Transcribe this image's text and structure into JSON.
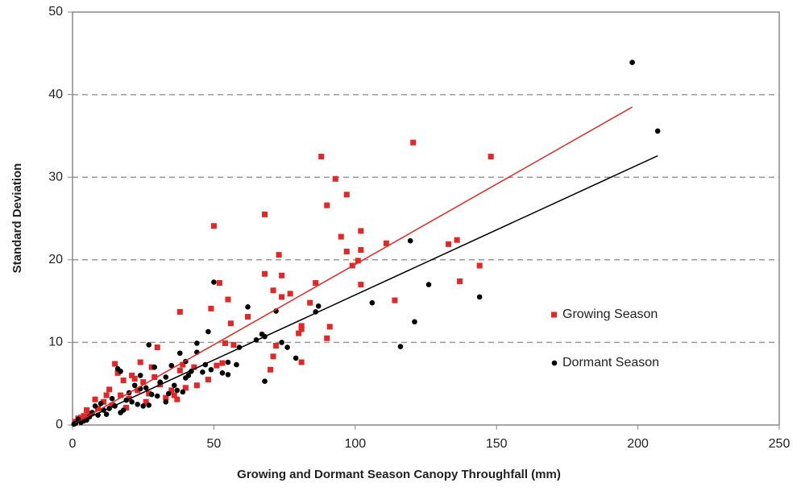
{
  "chart_data": {
    "type": "scatter",
    "xlabel": "Growing and Dormant Season Canopy Throughfall (mm)",
    "ylabel": "Standard Deviation",
    "xlim": [
      0,
      250
    ],
    "xticks": [
      0,
      50,
      100,
      150,
      200,
      250
    ],
    "ylim": [
      0,
      50
    ],
    "yticks": [
      0,
      10,
      20,
      30,
      40,
      50
    ],
    "grid": true,
    "legend": "right",
    "series": [
      {
        "name": "Growing Season",
        "color": "#e32626",
        "marker": "square",
        "x": [
          88,
          120.5,
          148,
          93,
          97,
          90,
          68,
          50,
          102,
          95,
          111,
          133,
          136,
          102,
          97,
          73,
          99,
          144,
          101,
          68,
          74,
          86,
          52,
          102,
          137,
          71,
          77,
          74,
          55,
          114,
          84,
          49,
          62,
          38,
          91,
          80,
          81,
          81,
          56,
          90,
          72,
          54,
          57,
          81,
          71,
          70,
          30,
          15,
          24,
          28,
          43,
          38,
          21,
          16,
          22,
          18,
          25,
          31,
          35,
          40,
          44,
          13,
          17,
          20,
          27,
          33,
          8,
          11,
          14,
          19,
          9,
          5,
          4,
          2,
          1,
          26,
          23,
          36,
          39,
          29,
          37,
          48,
          53,
          51,
          12,
          6,
          3
        ],
        "y": [
          32.5,
          34.2,
          32.5,
          29.8,
          27.9,
          26.6,
          25.5,
          24.1,
          23.5,
          22.8,
          22,
          21.9,
          22.4,
          21.2,
          21,
          20.6,
          19.3,
          19.3,
          19.9,
          18.3,
          18.1,
          17.2,
          17.2,
          17,
          17.4,
          16.3,
          15.9,
          15.5,
          15.2,
          15.1,
          14.8,
          14.1,
          13.1,
          13.7,
          11.9,
          11.1,
          11.6,
          12,
          12.3,
          10.5,
          9.6,
          9.9,
          9.7,
          7.6,
          8.3,
          6.7,
          9.4,
          7.4,
          7.6,
          7,
          7,
          6.6,
          6,
          6.3,
          5.6,
          5.4,
          5.2,
          4.9,
          4.2,
          4.5,
          4.8,
          4.3,
          3.6,
          3.2,
          3.8,
          3.3,
          3.1,
          2.8,
          2.4,
          2.1,
          2,
          1.8,
          1.1,
          0.8,
          0.4,
          2.8,
          4.2,
          3.6,
          7.3,
          5.8,
          3.1,
          5.5,
          7.5,
          7.2,
          3.6,
          1.4,
          0.9
        ],
        "trend_x": [
          0,
          198
        ],
        "trend_y": [
          0,
          38.5
        ]
      },
      {
        "name": "Dormant Season",
        "color": "#000000",
        "marker": "circle",
        "x": [
          198,
          207,
          119.5,
          126,
          144,
          106,
          121,
          116,
          87,
          86,
          62,
          72,
          67,
          68,
          74,
          59,
          65,
          76,
          50,
          48,
          79,
          58,
          68,
          55,
          44,
          44,
          38,
          27,
          40,
          42,
          46,
          47,
          49,
          53,
          55,
          35,
          31,
          33,
          16,
          17,
          29,
          26,
          24,
          20,
          22,
          36,
          39,
          40,
          41,
          34,
          30,
          28,
          19,
          21,
          23,
          25,
          27,
          33,
          15,
          13,
          11,
          10,
          8,
          7,
          9,
          12,
          17,
          18,
          6,
          5,
          4,
          3,
          2,
          1,
          0.5,
          14,
          37,
          24
        ],
        "y": [
          43.9,
          35.6,
          22.3,
          17,
          15.5,
          14.8,
          12.5,
          9.5,
          14.4,
          13.7,
          14.3,
          13.8,
          11,
          10.7,
          10,
          9.4,
          10.3,
          9.4,
          17.3,
          11.3,
          8.1,
          7.3,
          5.3,
          7.6,
          8.8,
          9.9,
          8.7,
          9.7,
          7.7,
          6.5,
          6.4,
          7.3,
          6.7,
          6.3,
          6.1,
          7.2,
          5.2,
          5.8,
          6.8,
          6.5,
          7,
          4.5,
          4.4,
          3.9,
          4.8,
          4.8,
          4,
          5.7,
          6,
          3.8,
          3.5,
          3.7,
          3,
          2.8,
          2.5,
          2.3,
          2.4,
          2.8,
          2.3,
          2,
          1.8,
          2.6,
          2.3,
          1.5,
          1.2,
          1.3,
          1.5,
          1.8,
          1,
          0.6,
          0.5,
          0.3,
          0.7,
          0.2,
          0.1,
          3.2,
          4.2,
          6
        ],
        "trend_x": [
          0,
          207
        ],
        "trend_y": [
          0,
          32.6
        ]
      }
    ]
  }
}
